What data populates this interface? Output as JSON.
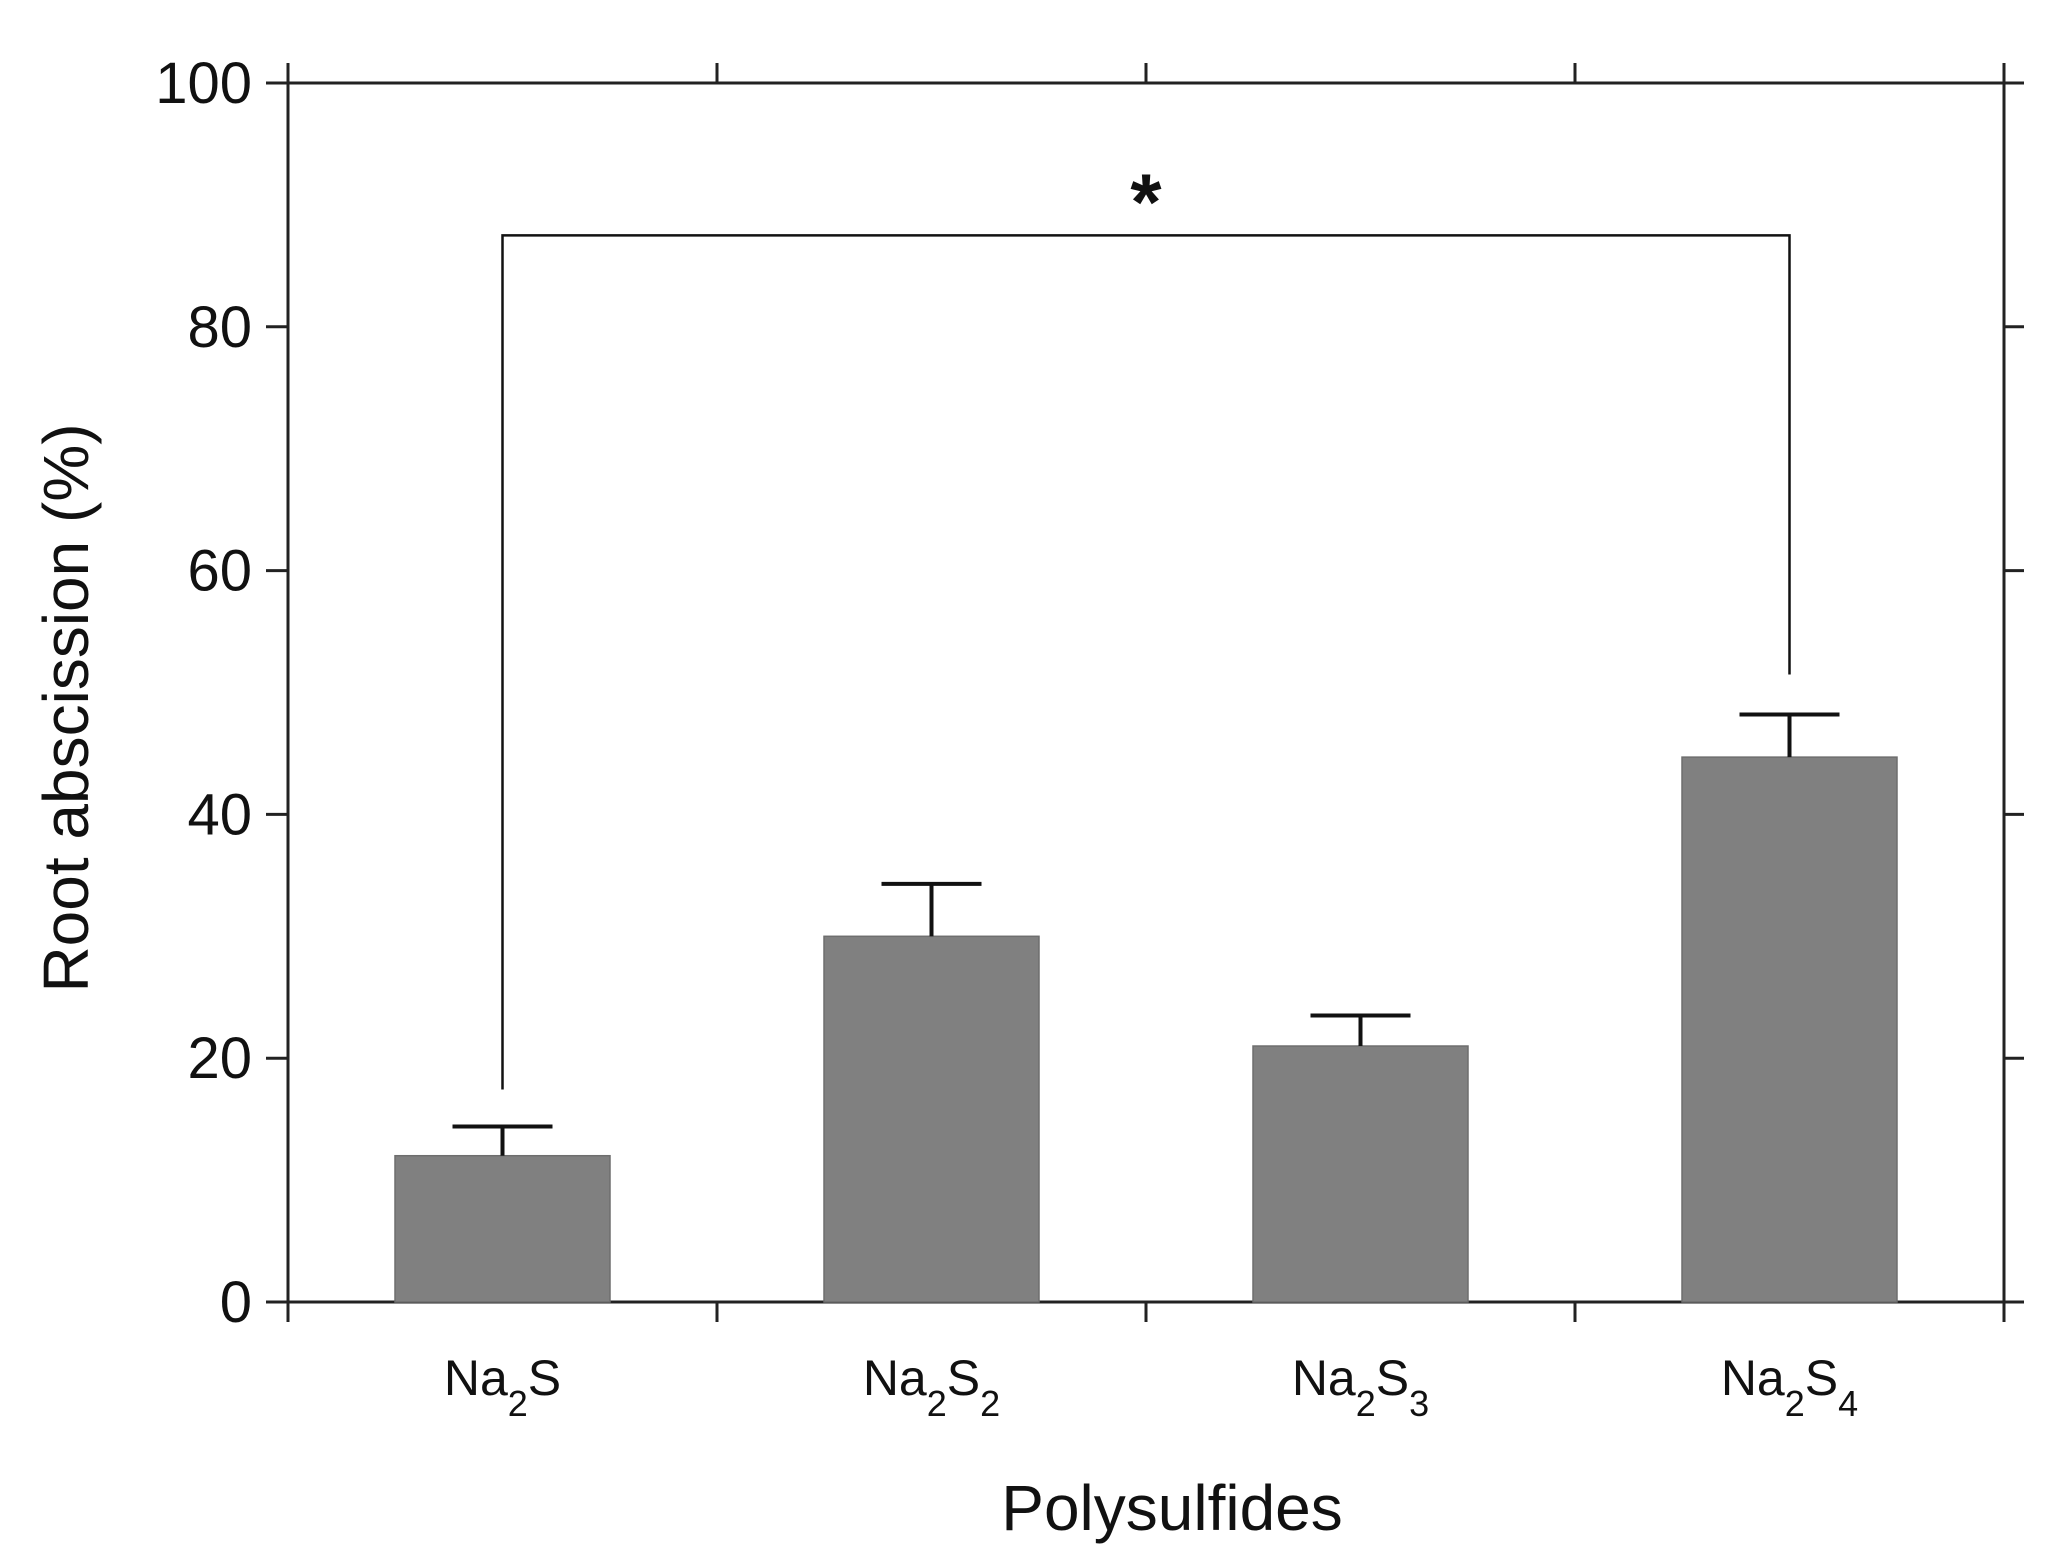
{
  "chart_data": {
    "type": "bar",
    "categories": [
      {
        "base": "Na",
        "sub1": "2",
        "mid": "S",
        "sub2": ""
      },
      {
        "base": "Na",
        "sub1": "2",
        "mid": "S",
        "sub2": "2"
      },
      {
        "base": "Na",
        "sub1": "2",
        "mid": "S",
        "sub2": "3"
      },
      {
        "base": "Na",
        "sub1": "2",
        "mid": "S",
        "sub2": "4"
      }
    ],
    "values": [
      12,
      30,
      21,
      44.7
    ],
    "errors": [
      2.4,
      4.3,
      2.5,
      3.5
    ],
    "xlabel": "Polysulfides",
    "ylabel": "Root abscission (%)",
    "ylim": [
      0,
      100
    ],
    "yticks": [
      "0",
      "20",
      "40",
      "60",
      "80",
      "100"
    ],
    "grid": false,
    "bar_color": "#808080",
    "annotation": {
      "text": "*",
      "from_category": 0,
      "to_category": 3,
      "bracket_y": 87.5
    }
  }
}
